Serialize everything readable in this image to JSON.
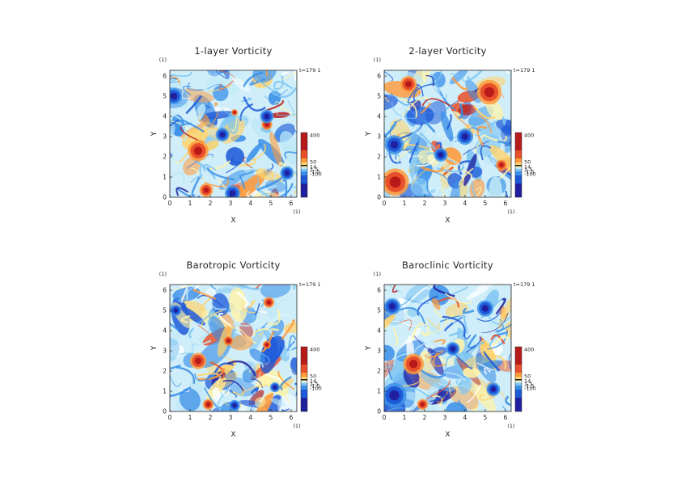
{
  "chart_data": [
    {
      "type": "heatmap",
      "title": "1-layer Vorticity",
      "xlabel": "X",
      "ylabel": "Y",
      "x_unit": "(1)",
      "y_unit": "(1)",
      "time_label": "t=179 1",
      "xlim": [
        0,
        6.283
      ],
      "ylim": [
        0,
        6.283
      ],
      "xticks": [
        "0",
        "1",
        "2",
        "3",
        "4",
        "5",
        "6"
      ],
      "yticks": [
        "0",
        "1",
        "2",
        "3",
        "4",
        "5",
        "6"
      ],
      "colorbar": {
        "labels": [
          "400",
          "50",
          "14",
          "1.5",
          "-1.5",
          "-100"
        ]
      },
      "vortices": [
        {
          "x": 1.4,
          "y": 2.3,
          "r": 0.38,
          "sign": "pos"
        },
        {
          "x": 1.8,
          "y": 0.35,
          "r": 0.25,
          "sign": "pos"
        },
        {
          "x": 4.8,
          "y": 3.6,
          "r": 0.2,
          "sign": "pos"
        },
        {
          "x": 3.2,
          "y": 4.2,
          "r": 0.12,
          "sign": "pos"
        },
        {
          "x": 0.2,
          "y": 5.0,
          "r": 0.3,
          "sign": "neg"
        },
        {
          "x": 3.1,
          "y": 0.2,
          "r": 0.28,
          "sign": "neg"
        },
        {
          "x": 5.8,
          "y": 1.2,
          "r": 0.25,
          "sign": "neg"
        },
        {
          "x": 4.8,
          "y": 4.0,
          "r": 0.25,
          "sign": "neg"
        },
        {
          "x": 2.6,
          "y": 3.1,
          "r": 0.25,
          "sign": "neg"
        }
      ]
    },
    {
      "type": "heatmap",
      "title": "2-layer Vorticity",
      "xlabel": "X",
      "ylabel": "Y",
      "x_unit": "(1)",
      "y_unit": "(1)",
      "time_label": "t=179 1",
      "xlim": [
        0,
        6.283
      ],
      "ylim": [
        0,
        6.283
      ],
      "xticks": [
        "0",
        "1",
        "2",
        "3",
        "4",
        "5",
        "6"
      ],
      "yticks": [
        "0",
        "1",
        "2",
        "3",
        "4",
        "5",
        "6"
      ],
      "colorbar": {
        "labels": [
          "400",
          "50",
          "14",
          "1.5",
          "-1.5",
          "-100"
        ]
      },
      "vortices": [
        {
          "x": 0.55,
          "y": 0.75,
          "r": 0.5,
          "sign": "pos"
        },
        {
          "x": 5.2,
          "y": 5.2,
          "r": 0.45,
          "sign": "pos"
        },
        {
          "x": 1.2,
          "y": 5.6,
          "r": 0.3,
          "sign": "pos"
        },
        {
          "x": 5.8,
          "y": 1.6,
          "r": 0.2,
          "sign": "pos"
        },
        {
          "x": 0.5,
          "y": 2.6,
          "r": 0.35,
          "sign": "neg"
        },
        {
          "x": 4.0,
          "y": 3.0,
          "r": 0.3,
          "sign": "neg"
        },
        {
          "x": 2.8,
          "y": 2.1,
          "r": 0.25,
          "sign": "neg"
        }
      ]
    },
    {
      "type": "heatmap",
      "title": "Barotropic Vorticity",
      "xlabel": "X",
      "ylabel": "Y",
      "x_unit": "(1)",
      "y_unit": "(1)",
      "time_label": "t=179 1",
      "xlim": [
        0,
        6.283
      ],
      "ylim": [
        0,
        6.283
      ],
      "xticks": [
        "0",
        "1",
        "2",
        "3",
        "4",
        "5",
        "6"
      ],
      "yticks": [
        "0",
        "1",
        "2",
        "3",
        "4",
        "5",
        "6"
      ],
      "colorbar": {
        "labels": [
          "400",
          "50",
          "14",
          "1.5",
          "-1.5",
          "-100"
        ]
      },
      "vortices": [
        {
          "x": 1.4,
          "y": 2.5,
          "r": 0.3,
          "sign": "pos"
        },
        {
          "x": 1.9,
          "y": 0.35,
          "r": 0.2,
          "sign": "pos"
        },
        {
          "x": 4.9,
          "y": 5.4,
          "r": 0.2,
          "sign": "pos"
        },
        {
          "x": 4.8,
          "y": 3.3,
          "r": 0.15,
          "sign": "pos"
        },
        {
          "x": 2.9,
          "y": 3.5,
          "r": 0.18,
          "sign": "pos"
        },
        {
          "x": 0.3,
          "y": 5.0,
          "r": 0.2,
          "sign": "neg"
        },
        {
          "x": 3.2,
          "y": 0.3,
          "r": 0.2,
          "sign": "neg"
        },
        {
          "x": 5.2,
          "y": 1.2,
          "r": 0.18,
          "sign": "neg"
        }
      ]
    },
    {
      "type": "heatmap",
      "title": "Baroclinic Vorticity",
      "xlabel": "X",
      "ylabel": "Y",
      "x_unit": "(1)",
      "y_unit": "(1)",
      "time_label": "t=179 1",
      "xlim": [
        0,
        6.283
      ],
      "ylim": [
        0,
        6.283
      ],
      "xticks": [
        "0",
        "1",
        "2",
        "3",
        "4",
        "5",
        "6"
      ],
      "yticks": [
        "0",
        "1",
        "2",
        "3",
        "4",
        "5",
        "6"
      ],
      "colorbar": {
        "labels": [
          "400",
          "50",
          "14",
          "1.5",
          "-1.5",
          "-100"
        ]
      },
      "vortices": [
        {
          "x": 1.45,
          "y": 2.35,
          "r": 0.38,
          "sign": "pos"
        },
        {
          "x": 1.9,
          "y": 0.35,
          "r": 0.2,
          "sign": "pos"
        },
        {
          "x": 0.5,
          "y": 0.8,
          "r": 0.45,
          "sign": "neg"
        },
        {
          "x": 5.0,
          "y": 5.1,
          "r": 0.3,
          "sign": "neg"
        },
        {
          "x": 3.4,
          "y": 3.1,
          "r": 0.25,
          "sign": "neg"
        },
        {
          "x": 5.4,
          "y": 1.1,
          "r": 0.25,
          "sign": "neg"
        },
        {
          "x": 0.4,
          "y": 5.2,
          "r": 0.3,
          "sign": "neg"
        }
      ]
    }
  ],
  "colors": {
    "scale": [
      "#1f1fa0",
      "#1e5ad8",
      "#3a8fe8",
      "#7cc4f2",
      "#bfe8f7",
      "#ffffff",
      "#fff3a8",
      "#ffd36b",
      "#ff9a3a",
      "#e8502a",
      "#b81a1a"
    ],
    "axis": "#222222"
  }
}
